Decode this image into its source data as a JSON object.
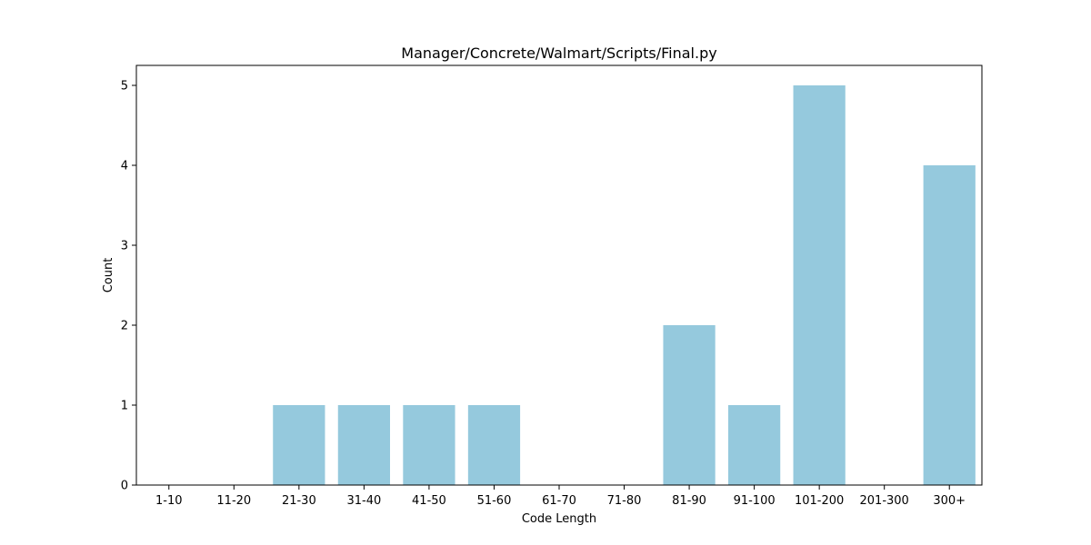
{
  "chart_data": {
    "type": "bar",
    "title": "Manager/Concrete/Walmart/Scripts/Final.py",
    "xlabel": "Code Length",
    "ylabel": "Count",
    "categories": [
      "1-10",
      "11-20",
      "21-30",
      "31-40",
      "41-50",
      "51-60",
      "61-70",
      "71-80",
      "81-90",
      "91-100",
      "101-200",
      "201-300",
      "300+"
    ],
    "values": [
      0,
      0,
      1,
      1,
      1,
      1,
      0,
      0,
      2,
      1,
      5,
      0,
      4
    ],
    "ylim": [
      0,
      5.25
    ],
    "yticks": [
      0,
      1,
      2,
      3,
      4,
      5
    ],
    "bar_color": "#95c9dd",
    "grid": false,
    "legend": "none"
  }
}
